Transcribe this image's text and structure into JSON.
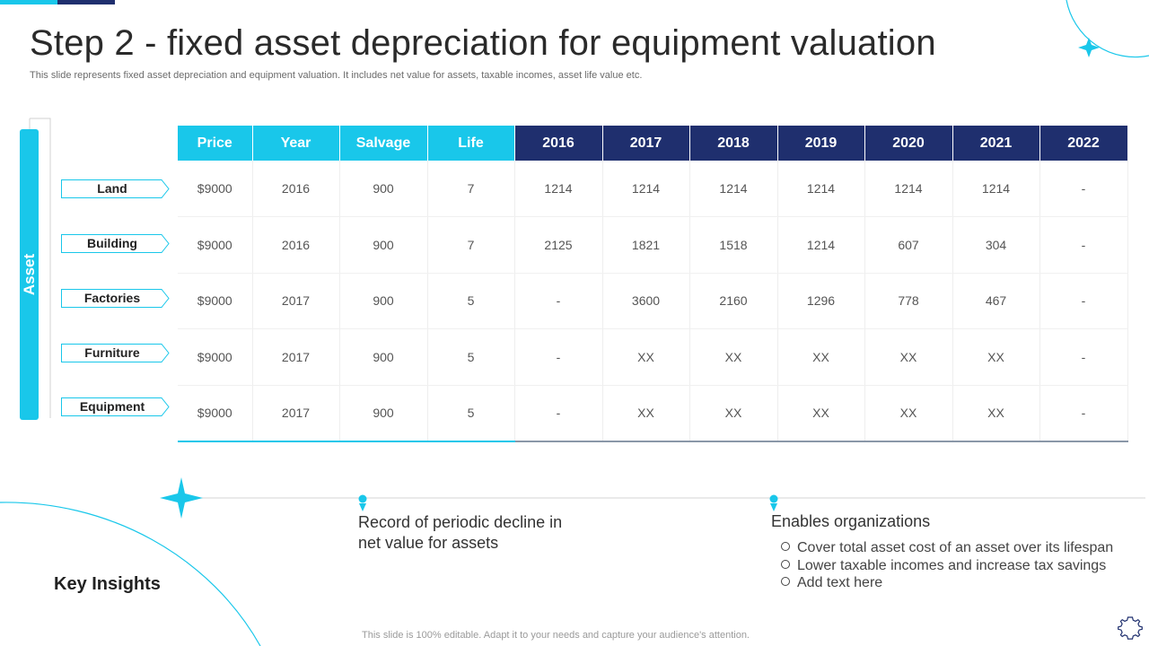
{
  "slide": {
    "title": "Step 2 - fixed asset depreciation for equipment valuation",
    "subtitle": "This slide represents fixed asset depreciation and equipment valuation. It includes net value for assets, taxable incomes, asset life value etc.",
    "footer": "This slide is 100% editable. Adapt it to your needs and capture your audience's attention."
  },
  "asset_group": {
    "label": "Asset",
    "rows": [
      "Land",
      "Building",
      "Factories",
      "Furniture",
      "Equipment"
    ]
  },
  "table": {
    "headers": [
      "Price",
      "Year",
      "Salvage",
      "Life",
      "2016",
      "2017",
      "2018",
      "2019",
      "2020",
      "2021",
      "2022"
    ],
    "rows": [
      [
        "$9000",
        "2016",
        "900",
        "7",
        "1214",
        "1214",
        "1214",
        "1214",
        "1214",
        "1214",
        "-"
      ],
      [
        "$9000",
        "2016",
        "900",
        "7",
        "2125",
        "1821",
        "1518",
        "1214",
        "607",
        "304",
        "-"
      ],
      [
        "$9000",
        "2017",
        "900",
        "5",
        "-",
        "3600",
        "2160",
        "1296",
        "778",
        "467",
        "-"
      ],
      [
        "$9000",
        "2017",
        "900",
        "5",
        "-",
        "XX",
        "XX",
        "XX",
        "XX",
        "XX",
        "-"
      ],
      [
        "$9000",
        "2017",
        "900",
        "5",
        "-",
        "XX",
        "XX",
        "XX",
        "XX",
        "XX",
        "-"
      ]
    ]
  },
  "insights": {
    "title": "Key Insights",
    "point1": "Record of periodic decline in net value for assets",
    "point2_title": "Enables  organizations",
    "point2_items": [
      "Cover total asset cost of an asset over its lifespan",
      "Lower taxable incomes and increase tax savings",
      "Add text here"
    ]
  },
  "colors": {
    "accent": "#19c7ea",
    "navy": "#1f2f6e"
  }
}
